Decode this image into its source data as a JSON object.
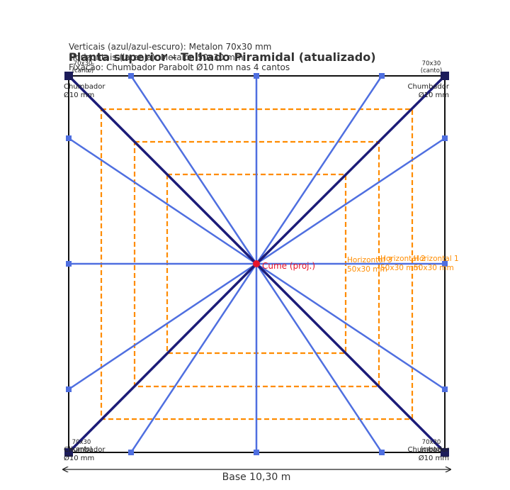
{
  "header": {
    "lines": [
      "Verticais (azul/azul-escuro): Metalon 70x30 mm",
      "Horizontais (laranja): Metalon 50x30 mm",
      "Fixação: Chumbador Parabolt Ø10 mm nas 4 cantos"
    ],
    "title": "Planta superior – Telhado Piramidal (atualizado)"
  },
  "corners": [
    {
      "size": "70x30",
      "note": "(canto)",
      "anchor": "Chumbador",
      "anchor_size": "Ø10 mm"
    },
    {
      "size": "70x30",
      "note": "(canto)",
      "anchor": "Chumbador",
      "anchor_size": "Ø10 mm"
    },
    {
      "size": "70x30",
      "note": "(canto)",
      "anchor": "Chumbador",
      "anchor_size": "Ø10 mm"
    },
    {
      "size": "70x30",
      "note": "(canto)",
      "anchor": "Chumbador",
      "anchor_size": "Ø10 mm"
    }
  ],
  "apex": "Cume (proj.)",
  "horizontals": [
    {
      "name": "Horizontal 3",
      "size": "50x30 mm"
    },
    {
      "name": "Horizontal 2",
      "size": "50x30 mm"
    },
    {
      "name": "Horizontal 1",
      "size": "50x30 mm"
    }
  ],
  "base": "Base 10,30 m"
}
